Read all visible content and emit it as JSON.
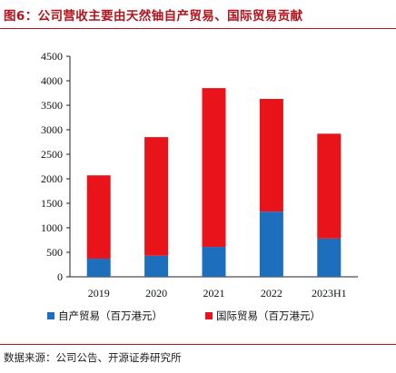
{
  "figure_title": "图6：公司营收主要由天然铀自产贸易、国际贸易贡献",
  "source_note": "数据来源：公司公告、开源证券研究所",
  "colors": {
    "self_trade": "#1d6fbd",
    "intl_trade": "#e8141a",
    "accent": "#b5121b"
  },
  "chart_data": {
    "type": "bar",
    "stacked": true,
    "title": "",
    "xlabel": "",
    "ylabel": "",
    "categories": [
      "2019",
      "2020",
      "2021",
      "2022",
      "2023H1"
    ],
    "ylim": [
      0,
      4500
    ],
    "yticks": [
      0,
      500,
      1000,
      1500,
      2000,
      2500,
      3000,
      3500,
      4000,
      4500
    ],
    "grid": false,
    "legend_position": "bottom",
    "series": [
      {
        "name": "自产贸易（百万港元）",
        "color": "#1d6fbd",
        "values": [
          370,
          430,
          610,
          1330,
          780
        ]
      },
      {
        "name": "国际贸易（百万港元）",
        "color": "#e8141a",
        "values": [
          1700,
          2420,
          3240,
          2300,
          2140
        ]
      }
    ]
  }
}
